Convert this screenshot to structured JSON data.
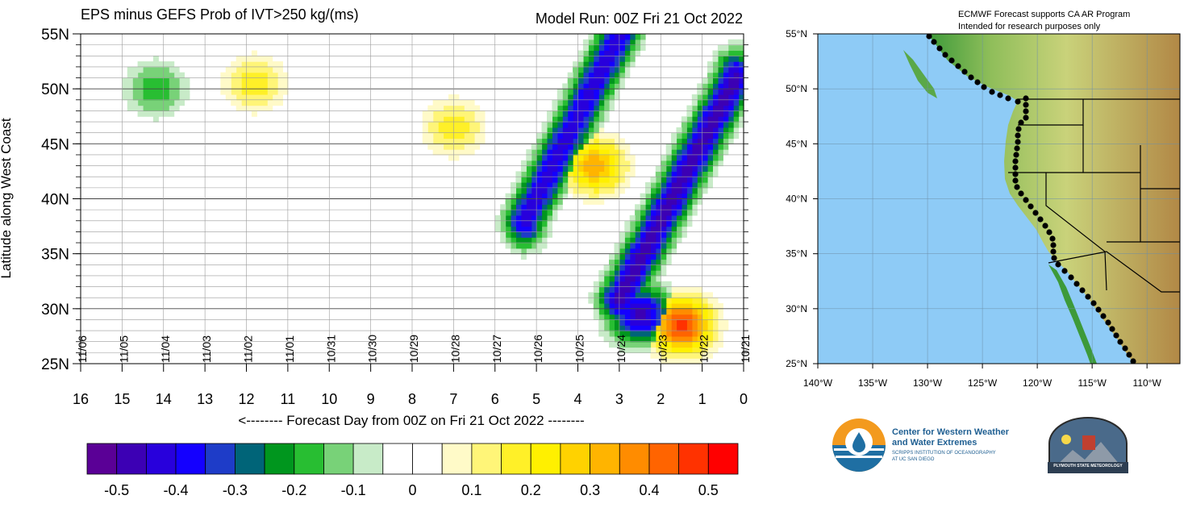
{
  "hovmoller": {
    "title": "EPS minus GEFS Prob of IVT>250 kg/(ms)",
    "run_label": "Model Run: 00Z Fri 21 Oct 2022",
    "ylabel": "Latitude along West Coast",
    "xlabel": "<-------- Forecast Day from 00Z on Fri 21 Oct 2022 --------",
    "y_ticks": [
      "55N",
      "50N",
      "45N",
      "40N",
      "35N",
      "30N",
      "25N"
    ],
    "x_ticks": [
      "16",
      "15",
      "14",
      "13",
      "12",
      "11",
      "10",
      "9",
      "8",
      "7",
      "6",
      "5",
      "4",
      "3",
      "2",
      "1",
      "0"
    ],
    "date_labels": [
      "11/06",
      "11/05",
      "11/04",
      "11/03",
      "11/02",
      "11/01",
      "10/31",
      "10/30",
      "10/29",
      "10/28",
      "10/27",
      "10/26",
      "10/25",
      "10/24",
      "10/23",
      "10/22",
      "10/21"
    ]
  },
  "chart_data": {
    "type": "heatmap",
    "title": "EPS minus GEFS Prob of IVT>250 kg/(ms)",
    "xlabel": "<-------- Forecast Day from 00Z on Fri 21 Oct 2022 --------",
    "ylabel": "Latitude along West Coast",
    "xlim": [
      16,
      0
    ],
    "ylim": [
      25,
      55
    ],
    "colorbar": {
      "ticks": [
        "-0.5",
        "-0.4",
        "-0.3",
        "-0.2",
        "-0.1",
        "0",
        "0.1",
        "0.2",
        "0.3",
        "0.4",
        "0.5"
      ],
      "colors": [
        "#5a0096",
        "#3c00b4",
        "#2800dc",
        "#1400ff",
        "#1e3cc8",
        "#006478",
        "#00961e",
        "#28be32",
        "#78d278",
        "#c8ebc8",
        "#ffffff",
        "#ffffff",
        "#fffac8",
        "#fff578",
        "#fff028",
        "#fff000",
        "#ffd200",
        "#ffb400",
        "#ff8c00",
        "#ff6400",
        "#ff3200",
        "#ff0000"
      ]
    },
    "features": [
      {
        "name": "diagonal negative band",
        "from_day": 5.3,
        "to_day": 3.0,
        "from_lat": 38,
        "to_lat": 55,
        "value": -0.45
      },
      {
        "name": "diagonal negative band",
        "from_day": 3.0,
        "to_day": 0.2,
        "from_lat": 31,
        "to_lat": 51,
        "value": -0.5
      },
      {
        "name": "positive core",
        "day": 3.6,
        "lat": 43,
        "value": 0.35
      },
      {
        "name": "positive core",
        "day": 1.5,
        "lat": 28.5,
        "value": 0.5
      },
      {
        "name": "negative patch",
        "day": 2.5,
        "lat": 29.5,
        "value": -0.5
      },
      {
        "name": "positive patch",
        "day": 7.0,
        "lat": 46.5,
        "value": 0.2
      },
      {
        "name": "positive patch",
        "day": 11.8,
        "lat": 50.5,
        "value": 0.2
      },
      {
        "name": "negative patch",
        "day": 14.2,
        "lat": 50,
        "value": -0.2
      }
    ]
  },
  "map": {
    "note_line1": "ECMWF Forecast supports CA AR Program",
    "note_line2": "Intended for research purposes only",
    "lat_labels": [
      "55°N",
      "50°N",
      "45°N",
      "40°N",
      "35°N",
      "30°N",
      "25°N"
    ],
    "lon_labels": [
      "140°W",
      "135°W",
      "130°W",
      "125°W",
      "120°W",
      "115°W",
      "110°W"
    ],
    "colors": {
      "ocean": "#8ecbf6",
      "land_low": "#3d9a3a",
      "land_mid": "#b8cf6c",
      "land_high": "#b28846"
    }
  },
  "logos": {
    "cw3e_line1": "Center for Western Weather",
    "cw3e_line2": "and Water Extremes",
    "cw3e_line3": "SCRIPPS INSTITUTION OF OCEANOGRAPHY",
    "cw3e_line4": "AT UC SAN DIEGO",
    "plymouth": "PLYMOUTH STATE METEOROLOGY"
  }
}
